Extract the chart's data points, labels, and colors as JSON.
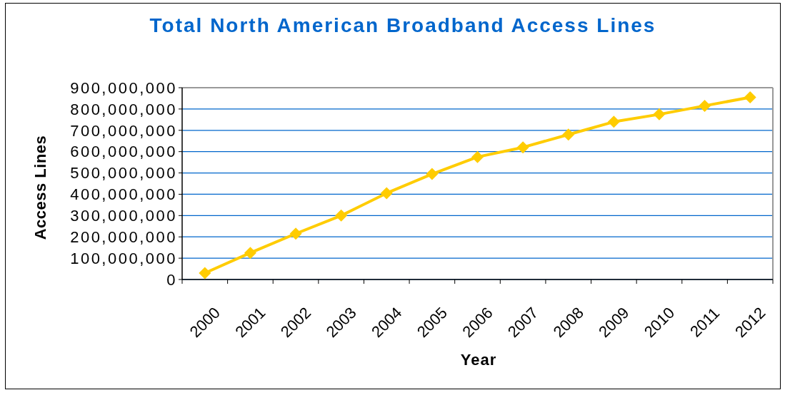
{
  "chart_data": {
    "type": "line",
    "title": "Total North American Broadband Access Lines",
    "xlabel": "Year",
    "ylabel": "Access Lines",
    "categories": [
      "2000",
      "2001",
      "2002",
      "2003",
      "2004",
      "2005",
      "2006",
      "2007",
      "2008",
      "2009",
      "2010",
      "2011",
      "2012"
    ],
    "values": [
      30000000,
      125000000,
      215000000,
      300000000,
      405000000,
      495000000,
      575000000,
      620000000,
      680000000,
      740000000,
      775000000,
      815000000,
      855000000
    ],
    "color": "#ffcc00",
    "ylim": [
      0,
      900000000
    ],
    "yticks": [
      0,
      {
        "value": 100000000,
        "label": "100,000,000"
      },
      {
        "value": 200000000,
        "label": "200,000,000"
      },
      {
        "value": 300000000,
        "label": "300,000,000"
      },
      {
        "value": 400000000,
        "label": "400,000,000"
      },
      {
        "value": 500000000,
        "label": "500,000,000"
      },
      {
        "value": 600000000,
        "label": "600,000,000"
      },
      {
        "value": 700000000,
        "label": "700,000,000"
      },
      {
        "value": 800000000,
        "label": "800,000,000"
      },
      {
        "value": 900000000,
        "label": "900,000,000"
      }
    ],
    "grid": "y",
    "marker": "diamond",
    "line_style": "solid"
  }
}
